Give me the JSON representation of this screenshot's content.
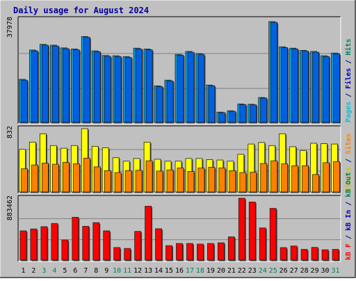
{
  "chart_data": {
    "type": "bar",
    "title": "Daily usage for August 2024",
    "categories": [
      "1",
      "2",
      "3",
      "4",
      "5",
      "6",
      "7",
      "8",
      "9",
      "10",
      "11",
      "12",
      "13",
      "14",
      "15",
      "16",
      "17",
      "18",
      "19",
      "20",
      "21",
      "22",
      "23",
      "24",
      "25",
      "26",
      "27",
      "28",
      "29",
      "30",
      "31"
    ],
    "weekend_days": [
      "3",
      "4",
      "10",
      "11",
      "17",
      "18",
      "24",
      "25",
      "31"
    ],
    "panels": [
      {
        "id": "pages-files-hits",
        "ymax_label": "37978",
        "ymax": 37978,
        "side_label": [
          {
            "text": "Pages",
            "color": "#00c0e0"
          },
          {
            "text": " / ",
            "color": "#000080"
          },
          {
            "text": "Files",
            "color": "#0000c0"
          },
          {
            "text": " / ",
            "color": "#000080"
          },
          {
            "text": "Hits",
            "color": "#008060"
          }
        ],
        "series": [
          {
            "name": "Hits",
            "color": "#00a0d8",
            "values": [
              15900,
              26700,
              28800,
              28500,
              27500,
              27100,
              31700,
              26400,
              24700,
              24600,
              24300,
              27400,
              27100,
              13500,
              15600,
              25100,
              26200,
              25400,
              13800,
              3800,
              4300,
              6800,
              6700,
              9200,
              37200,
              27900,
              27400,
              26600,
              26200,
              24600,
              25600
            ]
          },
          {
            "name": "Files",
            "color": "#0060e0",
            "values": [
              15600,
              26400,
              28500,
              28200,
              27200,
              26800,
              31400,
              26100,
              24400,
              24300,
              24000,
              27100,
              26800,
              13200,
              15300,
              24800,
              25900,
              25100,
              13500,
              3600,
              4100,
              6600,
              6500,
              9000,
              36900,
              27600,
              27100,
              26300,
              25900,
              24300,
              25300
            ]
          }
        ]
      },
      {
        "id": "visits-sites",
        "ymax_label": "832",
        "ymax": 832,
        "side_label": [
          {
            "text": "Visits",
            "color": "#d0c000"
          },
          {
            "text": " / ",
            "color": "#000080"
          },
          {
            "text": "Sites",
            "color": "#ff8000"
          }
        ],
        "series": [
          {
            "name": "Visits",
            "color": "#ffff00",
            "values": [
              560,
              655,
              765,
              610,
              575,
              610,
              832,
              600,
              580,
              450,
              405,
              440,
              655,
              430,
              405,
              405,
              440,
              440,
              425,
              420,
              405,
              495,
              630,
              650,
              610,
              765,
              595,
              545,
              640,
              635,
              630
            ]
          },
          {
            "name": "Sites",
            "color": "#ff8000",
            "values": [
              305,
              355,
              380,
              365,
              390,
              370,
              445,
              330,
              280,
              255,
              280,
              285,
              410,
              275,
              290,
              315,
              270,
              315,
              325,
              315,
              280,
              255,
              260,
              375,
              410,
              370,
              345,
              345,
              230,
              385,
              400
            ]
          }
        ]
      },
      {
        "id": "kbf-kbin-kbout",
        "ymax_label": "883462",
        "ymax": 883462,
        "side_label": [
          {
            "text": "kB F",
            "color": "#ff0000"
          },
          {
            "text": " / ",
            "color": "#000080"
          },
          {
            "text": "kB In",
            "color": "#0000c0"
          },
          {
            "text": " / ",
            "color": "#000080"
          },
          {
            "text": "kB Out",
            "color": "#008060"
          }
        ],
        "series": [
          {
            "name": "kB F",
            "color": "#ff0000",
            "values": [
              418000,
              445000,
              478000,
              523000,
              288000,
              612000,
              483000,
              535000,
              418000,
              180000,
              167000,
              410000,
              770000,
              448000,
              207000,
              238000,
              238000,
              229000,
              238000,
              248000,
              332000,
              883462,
              830000,
              460000,
              739000,
              179000,
              202000,
              154000,
              182000,
              148000,
              154000
            ]
          }
        ]
      }
    ]
  }
}
